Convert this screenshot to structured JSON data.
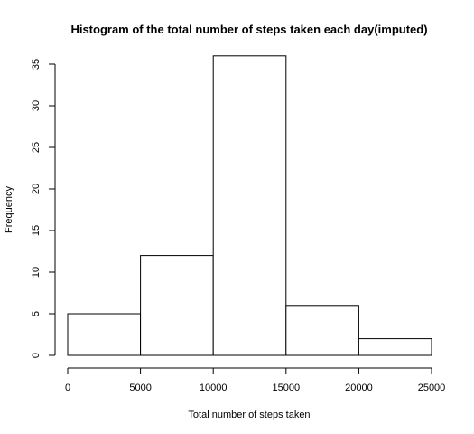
{
  "chart_data": {
    "type": "bar",
    "subtype": "histogram",
    "title": "Histogram of the total number of steps taken each day(imputed)",
    "xlabel": "Total number of steps taken",
    "ylabel": "Frequency",
    "bins": [
      {
        "from": 0,
        "to": 5000,
        "count": 5
      },
      {
        "from": 5000,
        "to": 10000,
        "count": 12
      },
      {
        "from": 10000,
        "to": 15000,
        "count": 36
      },
      {
        "from": 15000,
        "to": 20000,
        "count": 6
      },
      {
        "from": 20000,
        "to": 25000,
        "count": 2
      }
    ],
    "x_ticks": [
      0,
      5000,
      10000,
      15000,
      20000,
      25000
    ],
    "x_tick_labels": [
      "0",
      "5000",
      "10000",
      "15000",
      "20000",
      "25000"
    ],
    "y_ticks": [
      0,
      5,
      10,
      15,
      20,
      25,
      30,
      35
    ],
    "y_tick_labels": [
      "0",
      "5",
      "10",
      "15",
      "20",
      "25",
      "30",
      "35"
    ],
    "xlim": [
      0,
      25000
    ],
    "ylim": [
      0,
      35
    ],
    "grid": false,
    "bar_fill": "#ffffff",
    "bar_stroke": "#000000"
  }
}
